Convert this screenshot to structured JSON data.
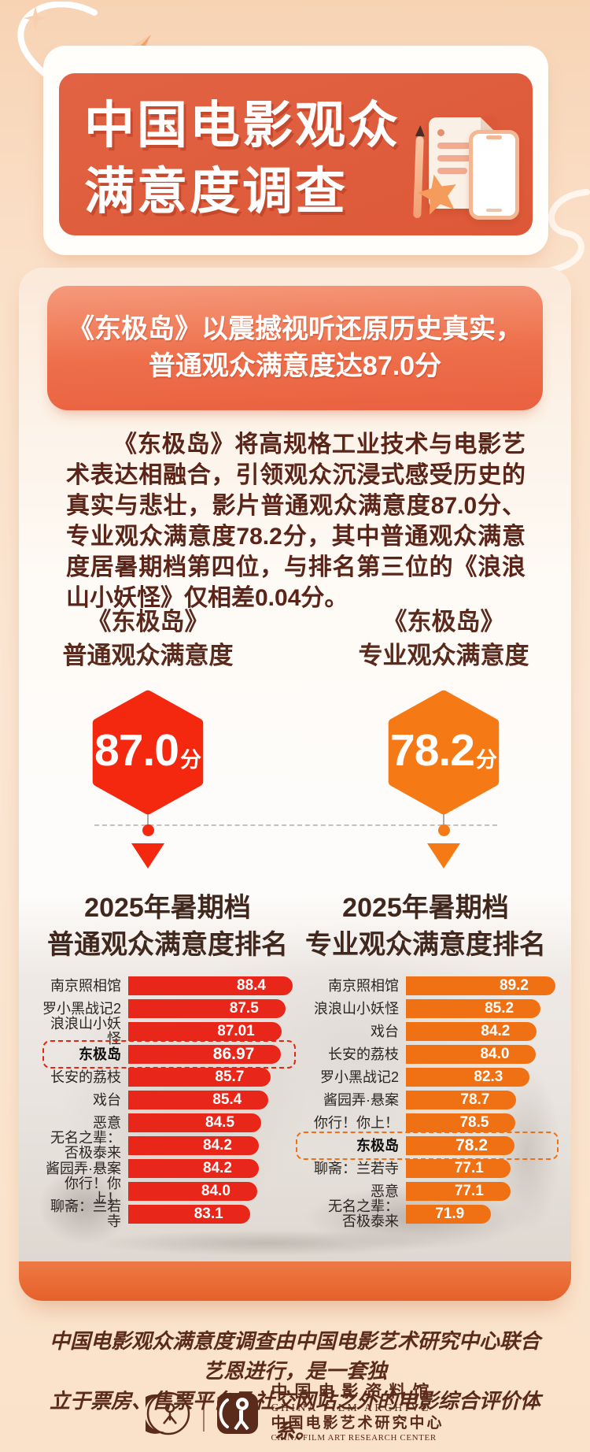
{
  "colors": {
    "accent_red": "#F4270F",
    "accent_orange": "#F57A16",
    "bar_red": "#E9261A",
    "bar_orange": "#F07014",
    "header_panel": "#DD5837",
    "bottom_band": "#E6602A",
    "text_dark": "#5A2418"
  },
  "header": {
    "title_line1": "中国电影观众",
    "title_line2": "满意度调查"
  },
  "banner": {
    "line1": "《东极岛》以震撼视听还原历史真实，",
    "line2": "普通观众满意度达87.0分"
  },
  "intro": {
    "text": "《东极岛》将高规格工业技术与电影艺术表达相融合，引领观众沉浸式感受历史的真实与悲壮，影片普通观众满意度87.0分、专业观众满意度78.2分，其中普通观众满意度居暑期档第四位，与排名第三位的《浪浪山小妖怪》仅相差0.04分。"
  },
  "scores": {
    "left": {
      "movie": "《东极岛》",
      "label": "普通观众满意度",
      "value": "87.0",
      "unit": "分",
      "color": "#F4270F"
    },
    "right": {
      "movie": "《东极岛》",
      "label": "专业观众满意度",
      "value": "78.2",
      "unit": "分",
      "color": "#F57A16"
    }
  },
  "chart_data": [
    {
      "type": "bar",
      "orientation": "horizontal",
      "title": "2025年暑期档",
      "subtitle": "普通观众满意度排名",
      "legend": "none",
      "grid": false,
      "bar_color": "#E9261A",
      "xlim": [
        68,
        88.4
      ],
      "categories": [
        "南京照相馆",
        "罗小黑战记2",
        "浪浪山小妖怪",
        "东极岛",
        "长安的荔枝",
        "戏台",
        "恶意",
        "无名之辈：\n否极泰来",
        "酱园弄·悬案",
        "你行！你上！",
        "聊斋：兰若寺"
      ],
      "values": [
        88.4,
        87.5,
        87.01,
        86.97,
        85.7,
        85.4,
        84.5,
        84.2,
        84.2,
        84.0,
        83.1
      ],
      "value_labels": [
        "88.4",
        "87.5",
        "87.01",
        "86.97",
        "85.7",
        "85.4",
        "84.5",
        "84.2",
        "84.2",
        "84.0",
        "83.1"
      ],
      "highlight_index": 3,
      "highlight_label": "东极岛"
    },
    {
      "type": "bar",
      "orientation": "horizontal",
      "title": "2025年暑期档",
      "subtitle": "专业观众满意度排名",
      "legend": "none",
      "grid": false,
      "bar_color": "#F07014",
      "xlim": [
        49,
        89.2
      ],
      "categories": [
        "南京照相馆",
        "浪浪山小妖怪",
        "戏台",
        "长安的荔枝",
        "罗小黑战记2",
        "酱园弄·悬案",
        "你行！你上！",
        "东极岛",
        "聊斋：兰若寺",
        "恶意",
        "无名之辈：\n否极泰来"
      ],
      "values": [
        89.2,
        85.2,
        84.2,
        84.0,
        82.3,
        78.7,
        78.5,
        78.2,
        77.1,
        77.1,
        71.9
      ],
      "value_labels": [
        "89.2",
        "85.2",
        "84.2",
        "84.0",
        "82.3",
        "78.7",
        "78.5",
        "78.2",
        "77.1",
        "77.1",
        "71.9"
      ],
      "highlight_index": 7,
      "highlight_label": "东极岛"
    }
  ],
  "footer": {
    "note": "中国电影观众满意度调查由中国电影艺术研究中心联合艺恩进行，是一套独\n立于票房、售票平台及社交网站之外的电影综合评价体系。",
    "org": {
      "cn1": "中国电影资料馆",
      "en1": "CHINA FILM ARCHIVE",
      "cn2": "中国电影艺术研究中心",
      "en2": "CHINA FILM ART RESEARCH CENTER"
    }
  }
}
